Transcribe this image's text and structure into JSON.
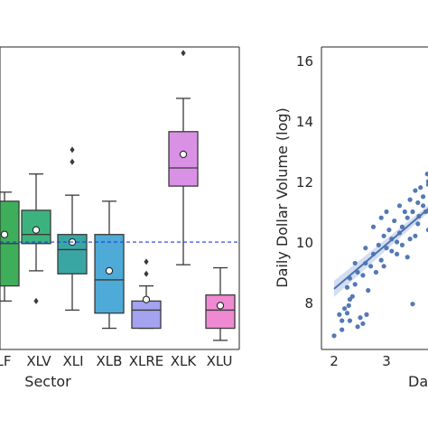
{
  "chart_data": [
    {
      "type": "box",
      "xlabel": "Sector",
      "categories": [
        "XLF",
        "XLV",
        "XLI",
        "XLB",
        "XLRE",
        "XLK",
        "XLU"
      ],
      "tick_labels": [
        "LF",
        "XLV",
        "XLI",
        "XLB",
        "XLRE",
        "XLK",
        "XLU"
      ],
      "colors": [
        "#3fae5a",
        "#3cb37f",
        "#3aa6a4",
        "#4eaad6",
        "#a3a3ef",
        "#d991e6",
        "#ef8ad2"
      ],
      "ylim": [
        6.2,
        16.2
      ],
      "reference_line": 9.75,
      "boxes": [
        {
          "q1": 8.3,
          "median": 9.7,
          "q3": 11.1,
          "whisker_low": 7.8,
          "whisker_high": 11.4,
          "mean": 10.0,
          "outliers": []
        },
        {
          "q1": 9.7,
          "median": 10.0,
          "q3": 10.8,
          "whisker_low": 8.8,
          "whisker_high": 12.0,
          "mean": 10.15,
          "outliers": [
            7.8
          ]
        },
        {
          "q1": 8.7,
          "median": 9.5,
          "q3": 10.0,
          "whisker_low": 7.5,
          "whisker_high": 11.3,
          "mean": 9.75,
          "outliers": [
            12.4,
            12.8
          ]
        },
        {
          "q1": 7.4,
          "median": 8.5,
          "q3": 10.0,
          "whisker_low": 6.9,
          "whisker_high": 11.1,
          "mean": 8.8,
          "outliers": []
        },
        {
          "q1": 6.9,
          "median": 7.5,
          "q3": 7.8,
          "whisker_low": 6.9,
          "whisker_high": 8.3,
          "mean": 7.85,
          "outliers": [
            8.7,
            9.1
          ]
        },
        {
          "q1": 11.6,
          "median": 12.2,
          "q3": 13.4,
          "whisker_low": 9.0,
          "whisker_high": 14.5,
          "mean": 12.65,
          "outliers": [
            16.0
          ]
        },
        {
          "q1": 6.9,
          "median": 7.5,
          "q3": 8.0,
          "whisker_low": 6.5,
          "whisker_high": 8.9,
          "mean": 7.65,
          "outliers": []
        }
      ]
    },
    {
      "type": "scatter",
      "ylabel": "Daily Dollar Volume (log)",
      "xlabel": "Da",
      "xlim": [
        1.75,
        4.3
      ],
      "ylim": [
        6.5,
        16.5
      ],
      "x_ticks": [
        2,
        3
      ],
      "y_ticks": [
        8,
        10,
        12,
        14,
        16
      ],
      "point_color": "#4c72b0",
      "points": [
        [
          2.0,
          6.9
        ],
        [
          2.15,
          7.1
        ],
        [
          2.15,
          7.4
        ],
        [
          2.1,
          7.6
        ],
        [
          2.2,
          7.8
        ],
        [
          2.25,
          7.65
        ],
        [
          2.3,
          7.4
        ],
        [
          2.3,
          8.1
        ],
        [
          2.35,
          8.2
        ],
        [
          2.28,
          7.9
        ],
        [
          2.55,
          7.3
        ],
        [
          2.5,
          7.5
        ],
        [
          2.62,
          7.6
        ],
        [
          2.45,
          7.2
        ],
        [
          2.25,
          8.5
        ],
        [
          2.3,
          8.8
        ],
        [
          2.4,
          8.6
        ],
        [
          2.45,
          9.0
        ],
        [
          2.55,
          8.9
        ],
        [
          2.6,
          9.3
        ],
        [
          2.65,
          8.4
        ],
        [
          2.7,
          9.2
        ],
        [
          2.75,
          9.6
        ],
        [
          2.8,
          9.0
        ],
        [
          2.75,
          10.5
        ],
        [
          2.85,
          9.9
        ],
        [
          2.9,
          9.4
        ],
        [
          2.95,
          10.2
        ],
        [
          3.0,
          9.8
        ],
        [
          3.05,
          10.4
        ],
        [
          3.1,
          10.1
        ],
        [
          3.15,
          10.7
        ],
        [
          3.2,
          10.0
        ],
        [
          3.25,
          11.2
        ],
        [
          3.3,
          10.5
        ],
        [
          3.35,
          11.0
        ],
        [
          3.4,
          10.8
        ],
        [
          3.45,
          11.4
        ],
        [
          3.5,
          11.0
        ],
        [
          3.55,
          11.7
        ],
        [
          3.6,
          11.3
        ],
        [
          3.65,
          11.8
        ],
        [
          3.7,
          11.5
        ],
        [
          3.75,
          11.0
        ],
        [
          3.8,
          11.9
        ],
        [
          3.2,
          9.6
        ],
        [
          3.3,
          9.9
        ],
        [
          3.55,
          10.2
        ],
        [
          3.6,
          10.6
        ],
        [
          2.9,
          10.8
        ],
        [
          2.6,
          9.8
        ],
        [
          2.4,
          9.3
        ],
        [
          3.0,
          11.0
        ],
        [
          3.4,
          9.5
        ],
        [
          3.8,
          10.4
        ],
        [
          3.5,
          7.95
        ],
        [
          3.7,
          11.2
        ],
        [
          3.62,
          10.85
        ],
        [
          3.8,
          12.0
        ],
        [
          3.78,
          12.25
        ],
        [
          3.25,
          10.3
        ],
        [
          3.1,
          9.7
        ],
        [
          2.95,
          9.2
        ],
        [
          3.45,
          10.1
        ]
      ],
      "fit_line": {
        "x": [
          2.0,
          3.8
        ],
        "y": [
          8.45,
          11.1
        ]
      }
    }
  ]
}
